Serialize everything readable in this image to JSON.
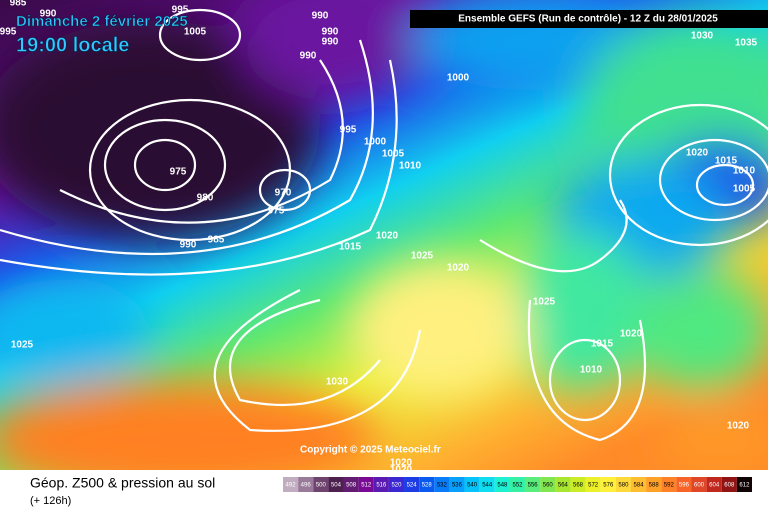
{
  "title": {
    "date": "Dimanche 2 février 2025",
    "time": "19:00 locale"
  },
  "header": "Ensemble GEFS  (Run de contrôle)  -  12 Z du 28/01/2025",
  "isobar_labels": [
    985,
    995,
    990,
    995,
    990,
    990,
    990,
    990,
    1005,
    1000,
    995,
    1000,
    1005,
    1010,
    975,
    980,
    970,
    975,
    985,
    990,
    1015,
    1020,
    1025,
    1020,
    1025,
    1030,
    1035,
    1020,
    1015,
    1010,
    1005,
    1020,
    1015,
    1010,
    1025,
    1030,
    1020,
    1020,
    1020
  ],
  "copyright": "Copyright © 2025 Meteociel.fr",
  "legend": {
    "title": "Géop. Z500 & pression au sol",
    "lead_time": "(+ 126h)",
    "values": [
      492,
      496,
      500,
      504,
      508,
      512,
      516,
      520,
      524,
      528,
      532,
      536,
      540,
      544,
      548,
      552,
      556,
      560,
      564,
      568,
      572,
      576,
      580,
      584,
      588,
      592,
      596,
      600,
      604,
      608,
      612
    ],
    "colors": [
      "#c0aec0",
      "#9a7a9a",
      "#6e446e",
      "#4e2050",
      "#621c72",
      "#7a0a96",
      "#5a1ab4",
      "#3c28d2",
      "#1e3ce6",
      "#0a5af0",
      "#0a7cf8",
      "#08a0fa",
      "#06c4fa",
      "#10def0",
      "#1ef0d2",
      "#36f0a6",
      "#5aec7c",
      "#82e650",
      "#a8e632",
      "#ccec28",
      "#ecf028",
      "#fff03c",
      "#ffd83c",
      "#ffbe32",
      "#ffa028",
      "#ff8228",
      "#f86428",
      "#e04628",
      "#c0281e",
      "#901414",
      "#100404"
    ]
  }
}
